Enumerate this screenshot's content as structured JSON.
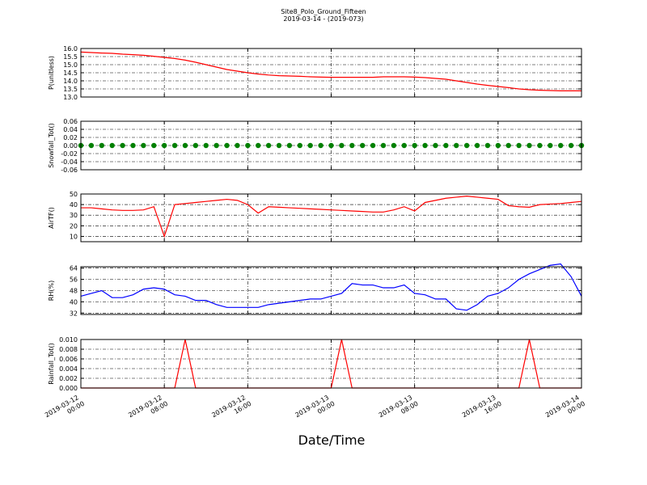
{
  "chart_data": [
    {
      "type": "line",
      "title": "Site8_Polo_Ground_Fifteen",
      "subtitle": "2019-03-14 - (2019-073)",
      "ylabel": "P(unitless)",
      "ylim": [
        13,
        16
      ],
      "yticks": [
        {
          "value": 13,
          "label": "13.0"
        },
        {
          "value": 13.5,
          "label": "13.5"
        },
        {
          "value": 14,
          "label": "14.0"
        },
        {
          "value": 14.5,
          "label": "14.5"
        },
        {
          "value": 15,
          "label": "15.0"
        },
        {
          "value": 15.5,
          "label": "15.5"
        },
        {
          "value": 16,
          "label": "16.0"
        }
      ],
      "grid": true,
      "series": [
        {
          "color": "#ff0000",
          "values": [
            15.78,
            15.75,
            15.72,
            15.7,
            15.65,
            15.62,
            15.58,
            15.52,
            15.45,
            15.38,
            15.28,
            15.15,
            15.0,
            14.85,
            14.7,
            14.6,
            14.5,
            14.42,
            14.36,
            14.32,
            14.3,
            14.28,
            14.25,
            14.23,
            14.22,
            14.22,
            14.22,
            14.22,
            14.22,
            14.25,
            14.25,
            14.25,
            14.23,
            14.2,
            14.15,
            14.1,
            14.0,
            13.9,
            13.8,
            13.72,
            13.65,
            13.58,
            13.5,
            13.45,
            13.42,
            13.4,
            13.38,
            13.38,
            13.38
          ]
        }
      ]
    },
    {
      "type": "scatter",
      "ylabel": "Snowfall_Tot()",
      "ylim": [
        -0.06,
        0.06
      ],
      "yticks": [
        -0.06,
        -0.04,
        -0.02,
        {
          "value": 0,
          "label": "0.00"
        },
        0.02,
        0.04,
        0.06
      ],
      "grid": true,
      "series": [
        {
          "color": "#008000",
          "values": [
            0,
            0,
            0,
            0,
            0,
            0,
            0,
            0,
            0,
            0,
            0,
            0,
            0,
            0,
            0,
            0,
            0,
            0,
            0,
            0,
            0,
            0,
            0,
            0,
            0,
            0,
            0,
            0,
            0,
            0,
            0,
            0,
            0,
            0,
            0,
            0,
            0,
            0,
            0,
            0,
            0,
            0,
            0,
            0,
            0,
            0,
            0,
            0,
            0
          ]
        }
      ]
    },
    {
      "type": "line",
      "ylabel": "AirTF()",
      "ylim": [
        5,
        50
      ],
      "yticks": [
        10,
        20,
        30,
        40,
        50
      ],
      "grid": true,
      "series": [
        {
          "color": "#ff0000",
          "values": [
            37,
            37,
            36,
            35,
            34.5,
            34.5,
            35,
            38,
            10,
            40,
            41,
            42,
            43,
            44,
            45,
            44,
            40,
            32,
            38,
            37.5,
            37,
            36.5,
            36,
            35.5,
            35,
            34.5,
            34,
            33.5,
            33,
            33,
            35,
            38,
            34,
            42,
            44,
            46,
            47,
            48,
            47,
            46,
            45,
            39,
            38,
            37.5,
            40,
            40.5,
            41,
            42,
            43
          ]
        }
      ]
    },
    {
      "type": "line",
      "ylabel": "RH(%)",
      "ylim": [
        31,
        65
      ],
      "yticks": [
        32,
        40,
        48,
        56,
        64
      ],
      "grid": true,
      "series": [
        {
          "color": "#0000ff",
          "values": [
            44,
            46,
            48,
            43,
            43,
            45,
            49,
            50,
            49,
            45,
            44,
            41,
            41,
            38,
            36,
            36,
            36,
            36,
            38,
            39,
            40,
            41,
            42,
            42,
            44,
            46,
            53,
            52,
            52,
            50,
            50,
            52,
            46,
            45,
            42,
            42,
            35,
            34,
            38,
            44,
            46,
            50,
            56,
            60,
            63,
            66,
            67,
            58,
            44
          ]
        }
      ]
    },
    {
      "type": "line",
      "ylabel": "Rainfall_Tot()",
      "xlabel": "Date/Time",
      "ylim": [
        0,
        0.01
      ],
      "yticks": [
        {
          "value": 0,
          "label": "0.000"
        },
        {
          "value": 0.002,
          "label": "0.002"
        },
        {
          "value": 0.004,
          "label": "0.004"
        },
        {
          "value": 0.006,
          "label": "0.006"
        },
        {
          "value": 0.008,
          "label": "0.008"
        },
        {
          "value": 0.01,
          "label": "0.010"
        }
      ],
      "grid": true,
      "xlim": [
        "2019-03-12 00:00",
        "2019-03-14 00:00"
      ],
      "xticks": [
        "2019-03-12 00:00",
        "2019-03-12 08:00",
        "2019-03-12 16:00",
        "2019-03-13 00:00",
        "2019-03-13 08:00",
        "2019-03-13 16:00",
        "2019-03-14 00:00"
      ],
      "x": [
        "2019-03-12 00:00",
        "2019-03-12 01:00",
        "2019-03-12 02:00",
        "2019-03-12 03:00",
        "2019-03-12 04:00",
        "2019-03-12 05:00",
        "2019-03-12 06:00",
        "2019-03-12 07:00",
        "2019-03-12 08:00",
        "2019-03-12 09:00",
        "2019-03-12 10:00",
        "2019-03-12 11:00",
        "2019-03-12 12:00",
        "2019-03-12 13:00",
        "2019-03-12 14:00",
        "2019-03-12 15:00",
        "2019-03-12 16:00",
        "2019-03-12 17:00",
        "2019-03-12 18:00",
        "2019-03-12 19:00",
        "2019-03-12 20:00",
        "2019-03-12 21:00",
        "2019-03-12 22:00",
        "2019-03-12 23:00",
        "2019-03-13 00:00",
        "2019-03-13 01:00",
        "2019-03-13 02:00",
        "2019-03-13 03:00",
        "2019-03-13 04:00",
        "2019-03-13 05:00",
        "2019-03-13 06:00",
        "2019-03-13 07:00",
        "2019-03-13 08:00",
        "2019-03-13 09:00",
        "2019-03-13 10:00",
        "2019-03-13 11:00",
        "2019-03-13 12:00",
        "2019-03-13 13:00",
        "2019-03-13 14:00",
        "2019-03-13 15:00",
        "2019-03-13 16:00",
        "2019-03-13 17:00",
        "2019-03-13 18:00",
        "2019-03-13 19:00",
        "2019-03-13 20:00",
        "2019-03-13 21:00",
        "2019-03-13 22:00",
        "2019-03-13 23:00",
        "2019-03-14 00:00"
      ],
      "series": [
        {
          "color": "#ff0000",
          "values": [
            0,
            0,
            0,
            0,
            0,
            0,
            0,
            0,
            0,
            0,
            0.01,
            0,
            0,
            0,
            0,
            0,
            0,
            0,
            0,
            0,
            0,
            0,
            0,
            0,
            0,
            0.01,
            0,
            0,
            0,
            0,
            0,
            0,
            0,
            0,
            0,
            0,
            0,
            0,
            0,
            0,
            0,
            0,
            0,
            0.01,
            0,
            0,
            0,
            0,
            0
          ]
        }
      ]
    }
  ]
}
